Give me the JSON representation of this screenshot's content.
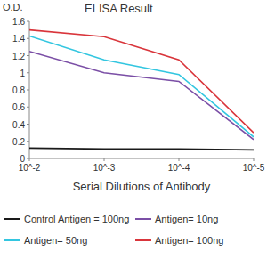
{
  "chart_data": {
    "type": "line",
    "title": "ELISA Result",
    "y_label": "O.D.",
    "x_label": "Serial Dilutions of Antibody",
    "categories": [
      "10^-2",
      "10^-3",
      "10^-4",
      "10^-5"
    ],
    "series": [
      {
        "name": "Control Antigen = 100ng",
        "color": "#1a1a1a",
        "values": [
          0.12,
          0.11,
          0.11,
          0.1
        ]
      },
      {
        "name": "Antigen= 10ng",
        "color": "#7b4fa6",
        "values": [
          1.25,
          1.0,
          0.9,
          0.22
        ]
      },
      {
        "name": "Antigen= 50ng",
        "color": "#33c6e0",
        "values": [
          1.43,
          1.15,
          0.98,
          0.25
        ]
      },
      {
        "name": "Antigen= 100ng",
        "color": "#d9353b",
        "values": [
          1.5,
          1.42,
          1.15,
          0.3
        ]
      }
    ],
    "ylim": [
      0,
      1.6
    ],
    "yticks": [
      0,
      0.2,
      0.4,
      0.6,
      0.8,
      1,
      1.2,
      1.4,
      1.6
    ],
    "grid": false,
    "legend": "bottom"
  }
}
